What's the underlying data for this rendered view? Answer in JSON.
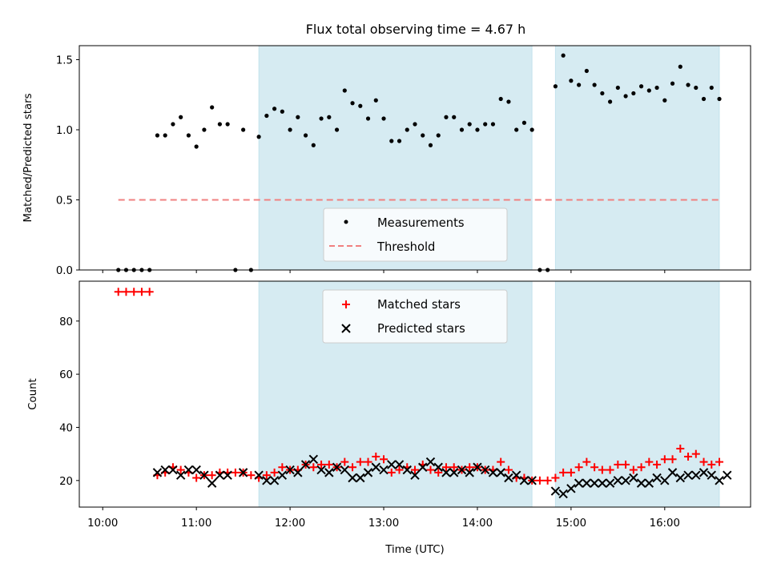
{
  "chart_data": [
    {
      "type": "scatter",
      "title": "Flux total observing time = 4.67 h",
      "xlabel": "",
      "ylabel": "Matched/Predicted stars",
      "ylim": [
        0,
        1.6
      ],
      "yticks": [
        "0.0",
        "0.5",
        "1.0",
        "1.5"
      ],
      "shaded_intervals": [
        [
          "11:40",
          "14:35"
        ],
        [
          "14:50",
          "16:35"
        ]
      ],
      "legend_position": "center-bottom",
      "threshold": {
        "name": "Threshold",
        "value": 0.5,
        "x_start": "10:10",
        "x_end": "16:35",
        "color": "#f08080"
      },
      "series": [
        {
          "name": "Measurements",
          "color": "#000000",
          "points": [
            [
              "10:10",
              0.0
            ],
            [
              "10:15",
              0.0
            ],
            [
              "10:20",
              0.0
            ],
            [
              "10:25",
              0.0
            ],
            [
              "10:30",
              0.0
            ],
            [
              "10:35",
              0.96
            ],
            [
              "10:40",
              0.96
            ],
            [
              "10:45",
              1.04
            ],
            [
              "10:50",
              1.09
            ],
            [
              "10:55",
              0.96
            ],
            [
              "11:00",
              0.88
            ],
            [
              "11:05",
              1.0
            ],
            [
              "11:10",
              1.16
            ],
            [
              "11:15",
              1.04
            ],
            [
              "11:20",
              1.04
            ],
            [
              "11:25",
              0.0
            ],
            [
              "11:30",
              1.0
            ],
            [
              "11:35",
              0.0
            ],
            [
              "11:40",
              0.95
            ],
            [
              "11:45",
              1.1
            ],
            [
              "11:50",
              1.15
            ],
            [
              "11:55",
              1.13
            ],
            [
              "12:00",
              1.0
            ],
            [
              "12:05",
              1.09
            ],
            [
              "12:10",
              0.96
            ],
            [
              "12:15",
              0.89
            ],
            [
              "12:20",
              1.08
            ],
            [
              "12:25",
              1.09
            ],
            [
              "12:30",
              1.0
            ],
            [
              "12:35",
              1.28
            ],
            [
              "12:40",
              1.19
            ],
            [
              "12:45",
              1.17
            ],
            [
              "12:50",
              1.08
            ],
            [
              "12:55",
              1.21
            ],
            [
              "13:00",
              1.08
            ],
            [
              "13:05",
              0.92
            ],
            [
              "13:10",
              0.92
            ],
            [
              "13:15",
              1.0
            ],
            [
              "13:20",
              1.04
            ],
            [
              "13:25",
              0.96
            ],
            [
              "13:30",
              0.89
            ],
            [
              "13:35",
              0.96
            ],
            [
              "13:40",
              1.09
            ],
            [
              "13:45",
              1.09
            ],
            [
              "13:50",
              1.0
            ],
            [
              "13:55",
              1.04
            ],
            [
              "14:00",
              1.0
            ],
            [
              "14:05",
              1.04
            ],
            [
              "14:10",
              1.04
            ],
            [
              "14:15",
              1.22
            ],
            [
              "14:20",
              1.2
            ],
            [
              "14:25",
              1.0
            ],
            [
              "14:30",
              1.05
            ],
            [
              "14:35",
              1.0
            ],
            [
              "14:40",
              0.0
            ],
            [
              "14:45",
              0.0
            ],
            [
              "14:50",
              1.31
            ],
            [
              "14:55",
              1.53
            ],
            [
              "15:00",
              1.35
            ],
            [
              "15:05",
              1.32
            ],
            [
              "15:10",
              1.42
            ],
            [
              "15:15",
              1.32
            ],
            [
              "15:20",
              1.26
            ],
            [
              "15:25",
              1.2
            ],
            [
              "15:30",
              1.3
            ],
            [
              "15:35",
              1.24
            ],
            [
              "15:40",
              1.26
            ],
            [
              "15:45",
              1.31
            ],
            [
              "15:50",
              1.28
            ],
            [
              "15:55",
              1.3
            ],
            [
              "16:00",
              1.21
            ],
            [
              "16:05",
              1.33
            ],
            [
              "16:10",
              1.45
            ],
            [
              "16:15",
              1.32
            ],
            [
              "16:20",
              1.3
            ],
            [
              "16:25",
              1.22
            ],
            [
              "16:30",
              1.3
            ],
            [
              "16:35",
              1.22
            ]
          ]
        }
      ]
    },
    {
      "type": "scatter",
      "title": "",
      "xlabel": "Time (UTC)",
      "ylabel": "Count",
      "ylim": [
        10,
        95
      ],
      "yticks": [
        "20",
        "40",
        "60",
        "80"
      ],
      "xticks": [
        "10:00",
        "11:00",
        "12:00",
        "13:00",
        "14:00",
        "15:00",
        "16:00"
      ],
      "xlim": [
        "09:45",
        "16:55"
      ],
      "shaded_intervals": [
        [
          "11:40",
          "14:35"
        ],
        [
          "14:50",
          "16:35"
        ]
      ],
      "legend_position": "top-center",
      "series": [
        {
          "name": "Matched stars",
          "color": "#ff0000",
          "marker": "plus",
          "points": [
            [
              "10:10",
              91
            ],
            [
              "10:15",
              91
            ],
            [
              "10:20",
              91
            ],
            [
              "10:25",
              91
            ],
            [
              "10:30",
              91
            ],
            [
              "10:35",
              22
            ],
            [
              "10:40",
              23
            ],
            [
              "10:45",
              25
            ],
            [
              "10:50",
              24
            ],
            [
              "10:55",
              23
            ],
            [
              "11:00",
              21
            ],
            [
              "11:05",
              22
            ],
            [
              "11:10",
              22
            ],
            [
              "11:15",
              23
            ],
            [
              "11:20",
              23
            ],
            [
              "11:25",
              23
            ],
            [
              "11:30",
              23
            ],
            [
              "11:35",
              22
            ],
            [
              "11:40",
              21
            ],
            [
              "11:45",
              22
            ],
            [
              "11:50",
              23
            ],
            [
              "11:55",
              25
            ],
            [
              "12:00",
              24
            ],
            [
              "12:05",
              24
            ],
            [
              "12:10",
              26
            ],
            [
              "12:15",
              25
            ],
            [
              "12:20",
              26
            ],
            [
              "12:25",
              26
            ],
            [
              "12:30",
              25
            ],
            [
              "12:35",
              27
            ],
            [
              "12:40",
              25
            ],
            [
              "12:45",
              27
            ],
            [
              "12:50",
              27
            ],
            [
              "12:55",
              29
            ],
            [
              "13:00",
              28
            ],
            [
              "13:05",
              23
            ],
            [
              "13:10",
              24
            ],
            [
              "13:15",
              25
            ],
            [
              "13:20",
              24
            ],
            [
              "13:25",
              26
            ],
            [
              "13:30",
              24
            ],
            [
              "13:35",
              23
            ],
            [
              "13:40",
              25
            ],
            [
              "13:45",
              25
            ],
            [
              "13:50",
              24
            ],
            [
              "13:55",
              25
            ],
            [
              "14:00",
              25
            ],
            [
              "14:05",
              24
            ],
            [
              "14:10",
              24
            ],
            [
              "14:15",
              27
            ],
            [
              "14:20",
              24
            ],
            [
              "14:25",
              21
            ],
            [
              "14:30",
              21
            ],
            [
              "14:35",
              20
            ],
            [
              "14:40",
              20
            ],
            [
              "14:45",
              20
            ],
            [
              "14:50",
              21
            ],
            [
              "14:55",
              23
            ],
            [
              "15:00",
              23
            ],
            [
              "15:05",
              25
            ],
            [
              "15:10",
              27
            ],
            [
              "15:15",
              25
            ],
            [
              "15:20",
              24
            ],
            [
              "15:25",
              24
            ],
            [
              "15:30",
              26
            ],
            [
              "15:35",
              26
            ],
            [
              "15:40",
              24
            ],
            [
              "15:45",
              25
            ],
            [
              "15:50",
              27
            ],
            [
              "15:55",
              26
            ],
            [
              "16:00",
              28
            ],
            [
              "16:05",
              28
            ],
            [
              "16:10",
              32
            ],
            [
              "16:15",
              29
            ],
            [
              "16:20",
              30
            ],
            [
              "16:25",
              27
            ],
            [
              "16:30",
              26
            ],
            [
              "16:35",
              27
            ]
          ]
        },
        {
          "name": "Predicted stars",
          "color": "#000000",
          "marker": "x",
          "points": [
            [
              "10:35",
              23
            ],
            [
              "10:40",
              24
            ],
            [
              "10:45",
              24
            ],
            [
              "10:50",
              22
            ],
            [
              "10:55",
              24
            ],
            [
              "11:00",
              24
            ],
            [
              "11:05",
              22
            ],
            [
              "11:10",
              19
            ],
            [
              "11:15",
              22
            ],
            [
              "11:20",
              22
            ],
            [
              "11:30",
              23
            ],
            [
              "11:40",
              22
            ],
            [
              "11:45",
              20
            ],
            [
              "11:50",
              20
            ],
            [
              "11:55",
              22
            ],
            [
              "12:00",
              24
            ],
            [
              "12:05",
              23
            ],
            [
              "12:10",
              26
            ],
            [
              "12:15",
              28
            ],
            [
              "12:20",
              24
            ],
            [
              "12:25",
              23
            ],
            [
              "12:30",
              25
            ],
            [
              "12:35",
              24
            ],
            [
              "12:40",
              21
            ],
            [
              "12:45",
              21
            ],
            [
              "12:50",
              23
            ],
            [
              "12:55",
              25
            ],
            [
              "13:00",
              24
            ],
            [
              "13:05",
              26
            ],
            [
              "13:10",
              26
            ],
            [
              "13:15",
              24
            ],
            [
              "13:20",
              22
            ],
            [
              "13:25",
              25
            ],
            [
              "13:30",
              27
            ],
            [
              "13:35",
              25
            ],
            [
              "13:40",
              23
            ],
            [
              "13:45",
              23
            ],
            [
              "13:50",
              24
            ],
            [
              "13:55",
              23
            ],
            [
              "14:00",
              25
            ],
            [
              "14:05",
              24
            ],
            [
              "14:10",
              23
            ],
            [
              "14:15",
              23
            ],
            [
              "14:20",
              21
            ],
            [
              "14:25",
              22
            ],
            [
              "14:30",
              20
            ],
            [
              "14:35",
              20
            ],
            [
              "14:50",
              16
            ],
            [
              "14:55",
              15
            ],
            [
              "15:00",
              17
            ],
            [
              "15:05",
              19
            ],
            [
              "15:10",
              19
            ],
            [
              "15:15",
              19
            ],
            [
              "15:20",
              19
            ],
            [
              "15:25",
              19
            ],
            [
              "15:30",
              20
            ],
            [
              "15:35",
              20
            ],
            [
              "15:40",
              21
            ],
            [
              "15:45",
              19
            ],
            [
              "15:50",
              19
            ],
            [
              "15:55",
              21
            ],
            [
              "16:00",
              20
            ],
            [
              "16:05",
              23
            ],
            [
              "16:10",
              21
            ],
            [
              "16:15",
              22
            ],
            [
              "16:20",
              22
            ],
            [
              "16:25",
              23
            ],
            [
              "16:30",
              22
            ],
            [
              "16:35",
              20
            ],
            [
              "16:40",
              22
            ]
          ]
        }
      ]
    }
  ]
}
